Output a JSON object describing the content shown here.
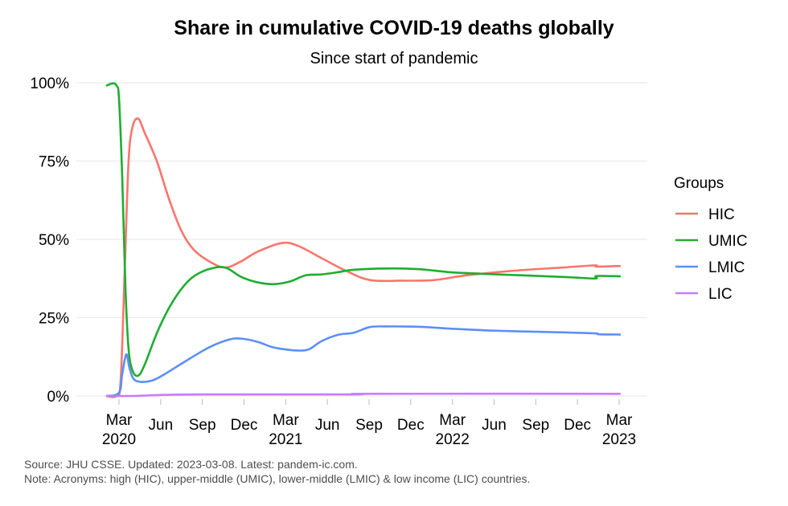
{
  "chart_data": {
    "type": "line",
    "title": "Share in cumulative COVID-19 deaths globally",
    "subtitle": "Since start of pandemic",
    "xlabel": "",
    "ylabel": "",
    "x_unit": "months since 2020-03-01",
    "xlim": [
      -1.0,
      36.3
    ],
    "ylim": [
      0,
      100
    ],
    "yticks": [
      {
        "v": 0,
        "label": "0%"
      },
      {
        "v": 25,
        "label": "25%"
      },
      {
        "v": 50,
        "label": "50%"
      },
      {
        "v": 75,
        "label": "75%"
      },
      {
        "v": 100,
        "label": "100%"
      }
    ],
    "xticks": [
      {
        "v": 0,
        "label": "Mar",
        "label2": "2020"
      },
      {
        "v": 3,
        "label": "Jun"
      },
      {
        "v": 6,
        "label": "Sep"
      },
      {
        "v": 9,
        "label": "Dec"
      },
      {
        "v": 12,
        "label": "Mar",
        "label2": "2021"
      },
      {
        "v": 15,
        "label": "Jun"
      },
      {
        "v": 18,
        "label": "Sep"
      },
      {
        "v": 21,
        "label": "Dec"
      },
      {
        "v": 24,
        "label": "Mar",
        "label2": "2022"
      },
      {
        "v": 27,
        "label": "Jun"
      },
      {
        "v": 30,
        "label": "Sep"
      },
      {
        "v": 33,
        "label": "Dec"
      },
      {
        "v": 36,
        "label": "Mar",
        "label2": "2023"
      }
    ],
    "grid": "horizontal",
    "legend": {
      "title": "Groups",
      "placement": "right"
    },
    "series": [
      {
        "name": "HIC",
        "color": "#f8766d",
        "points": [
          [
            -0.93,
            0
          ],
          [
            -0.17,
            0
          ],
          [
            0.12,
            5
          ],
          [
            0.41,
            40
          ],
          [
            0.69,
            75
          ],
          [
            0.98,
            86
          ],
          [
            1.39,
            88.5
          ],
          [
            1.85,
            84
          ],
          [
            2.72,
            75
          ],
          [
            3.59,
            63
          ],
          [
            4.46,
            53
          ],
          [
            5.32,
            47
          ],
          [
            6.48,
            43
          ],
          [
            7.64,
            41
          ],
          [
            8.8,
            43
          ],
          [
            9.95,
            46
          ],
          [
            11.69,
            48.8
          ],
          [
            12.85,
            48
          ],
          [
            14.58,
            44
          ],
          [
            16.32,
            40
          ],
          [
            18.06,
            37
          ],
          [
            20.37,
            36.8
          ],
          [
            22.69,
            37
          ],
          [
            25,
            38.5
          ],
          [
            28.47,
            40
          ],
          [
            31.94,
            41
          ],
          [
            34.26,
            41.7
          ],
          [
            34.38,
            41.3
          ],
          [
            36.11,
            41.5
          ]
        ]
      },
      {
        "name": "UMIC",
        "color": "#1fad2f",
        "points": [
          [
            -0.93,
            99
          ],
          [
            -0.46,
            99.8
          ],
          [
            -0.17,
            99
          ],
          [
            0,
            95
          ],
          [
            0.23,
            70
          ],
          [
            0.46,
            35
          ],
          [
            0.69,
            15
          ],
          [
            0.98,
            8
          ],
          [
            1.39,
            6.5
          ],
          [
            1.85,
            10
          ],
          [
            2.72,
            20
          ],
          [
            3.59,
            28
          ],
          [
            4.46,
            34
          ],
          [
            5.32,
            38
          ],
          [
            6.48,
            40.5
          ],
          [
            7.64,
            41
          ],
          [
            8.8,
            38
          ],
          [
            9.95,
            36.3
          ],
          [
            11.11,
            35.7
          ],
          [
            12.27,
            36.5
          ],
          [
            13.43,
            38.5
          ],
          [
            14.58,
            38.8
          ],
          [
            15.74,
            39.5
          ],
          [
            16.9,
            40.3
          ],
          [
            19.21,
            40.7
          ],
          [
            21.53,
            40.5
          ],
          [
            23.84,
            39.5
          ],
          [
            26.16,
            39
          ],
          [
            31.94,
            38
          ],
          [
            34.26,
            37.5
          ],
          [
            34.38,
            38.3
          ],
          [
            36.11,
            38.2
          ]
        ]
      },
      {
        "name": "LMIC",
        "color": "#5b8ff9",
        "points": [
          [
            -0.93,
            0
          ],
          [
            0,
            1
          ],
          [
            0.23,
            7
          ],
          [
            0.52,
            13.3
          ],
          [
            0.75,
            9
          ],
          [
            1.04,
            5.5
          ],
          [
            1.56,
            4.5
          ],
          [
            2.43,
            5
          ],
          [
            3.3,
            7
          ],
          [
            4.75,
            11
          ],
          [
            6.48,
            15.5
          ],
          [
            7.93,
            18
          ],
          [
            8.8,
            18.3
          ],
          [
            9.95,
            17.3
          ],
          [
            11.11,
            15.5
          ],
          [
            12.27,
            14.7
          ],
          [
            13.14,
            14.5
          ],
          [
            13.72,
            15
          ],
          [
            14.58,
            17.5
          ],
          [
            15.74,
            19.5
          ],
          [
            16.9,
            20.2
          ],
          [
            18.06,
            22
          ],
          [
            19.21,
            22.2
          ],
          [
            21.53,
            22.1
          ],
          [
            23.84,
            21.5
          ],
          [
            27.31,
            20.8
          ],
          [
            31.94,
            20.3
          ],
          [
            34.26,
            20
          ],
          [
            34.55,
            19.7
          ],
          [
            36.11,
            19.6
          ]
        ]
      },
      {
        "name": "LIC",
        "color": "#c77cff",
        "points": [
          [
            -0.93,
            0
          ],
          [
            1,
            0
          ],
          [
            3,
            0.3
          ],
          [
            6,
            0.5
          ],
          [
            17,
            0.5
          ],
          [
            18,
            0.7
          ],
          [
            36.11,
            0.7
          ]
        ]
      }
    ]
  },
  "caption": {
    "line1": "Source: JHU CSSE. Updated: 2023-03-08. Latest: pandem-ic.com.",
    "line2": "Note: Acronyms: high (HIC), upper-middle (UMIC), lower-middle (LMIC) & low income (LIC) countries."
  }
}
